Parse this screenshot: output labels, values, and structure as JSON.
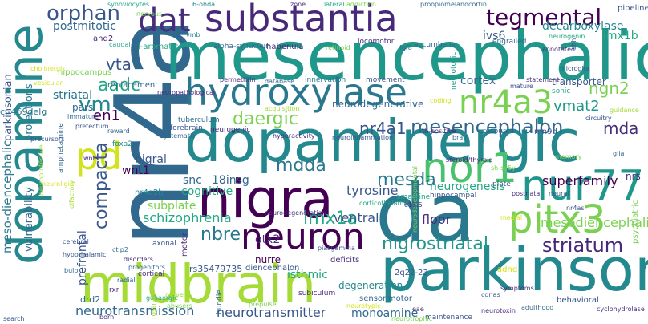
{
  "words": {
    "nr4a": "nr4a",
    "dopamine": "dopamine",
    "mesencephalic": "mesencephalic",
    "substantia": "substantia",
    "dopaminergic": "dopaminergic",
    "nigra": "nigra",
    "da": "da",
    "parkinson": "parkinson",
    "midbrain": "midbrain",
    "hydroxylase": "hydroxylase",
    "dat": "dat",
    "nor1": "nor1",
    "nur77": "nur77",
    "pitx3": "pitx3",
    "pd": "pd",
    "nr4a3": "nr4a3",
    "tegmental": "tegmental",
    "orphan": "orphan",
    "mesencephalon": "mesencephalon",
    "nr4a1": "nr4a1",
    "daergic": "daergic",
    "vm": "vm",
    "aadc": "aadc",
    "vta": "vta",
    "striatum": "striatum",
    "nigrostriatal": "nigrostriatal",
    "lmx1a": "lmx1a",
    "nbre": "nbre",
    "compacta": "compacta",
    "mesda": "mesda",
    "mdda": "mdda",
    "mda": "mda",
    "ngn2": "ngn2",
    "neuron": "neuron",
    "schizophrenia": "schizophrenia",
    "neurotransmission": "neurotransmission",
    "neurotransmitter": "neurotransmitter",
    "monoamine": "monoamine",
    "mesodiencephalic": "mesodiencephalic",
    "meso_diencephalic": "meso-diencephalic",
    "tyrosine": "tyrosine",
    "superfamily": "superfamily",
    "neurogenesis": "neurogenesis",
    "striatal": "striatal",
    "postmitotic": "postmitotic",
    "ivs6": "ivs6",
    "lmx1b": "lmx1b",
    "decarboxylase": "decarboxylase",
    "cortex": "cortex",
    "vmat2": "vmat2",
    "transporter": "transporter",
    "en1": "en1",
    "wnt1": "wnt1",
    "snc": "snc",
    "18insg": "18insg",
    "nigral": "nigral",
    "cognitive": "cognitive",
    "subplate": "subplate",
    "otx2": "otx2",
    "ventral": "ventral",
    "nurre": "nurre",
    "floor": "floor",
    "isthmic": "isthmic",
    "degeneration": "degeneration",
    "prefrontal": "prefrontal",
    "parkinsonian": "parkinsonian",
    "projections": "projections",
    "vulnerability": "vulnerability",
    "neurodegenerative": "neurodegenerative",
    "nr4a2b": "nr4a2b",
    "ahd2": "ahd2",
    "hippocampus": "hippocampus",
    "l_aromatic": "l-aromatic",
    "alpha_synuclein": "alpha-synuclein",
    "habenula": "habenula",
    "locomotor": "locomotor",
    "accumbens": "accumbens",
    "neurotoxic": "neurotoxic",
    "synoviocytes": "synoviocytes",
    "nervous": "nervous",
    "ohda": "6-ohda",
    "zone": "zone",
    "lateral": "lateral",
    "addiction": "addiction",
    "proopiomelanocortin": "proopiomelanocortin",
    "pipeline": "pipeline",
    "engrailed": "engrailed",
    "neurogenin": "neurogenin",
    "retinoid": "retinoid",
    "caudal": "caudal",
    "vmb": "vmb",
    "fgf8": "fgf8",
    "annotated": "annotated",
    "microglia": "microglia",
    "replacement": "replacement",
    "neuropathological": "neuropathological",
    "permethrin": "permethrin",
    "database": "database",
    "innervation": "innervation",
    "movement": "movement",
    "statement": "statement",
    "mature": "mature",
    "sonic": "sonic",
    "pars": "pars",
    "delg": "c.-469delg",
    "tuberculum": "tuberculum",
    "forebrain": "forebrain",
    "neurogenic": "neurogenic",
    "resource": "resource",
    "mn9d": "mn9d",
    "th_positive": "th-positive",
    "brain": "brain",
    "neuroinflammation": "neuroinflammation",
    "amacrine": "amacrine",
    "memory": "memory",
    "glia": "glia",
    "nrs": "nrs",
    "neurodegeneration": "neurodegeneration",
    "corticothalamic": "corticothalamic",
    "e115": "e11.5",
    "plate": "plate",
    "postnatal": "postnatal",
    "neural": "neural",
    "hippocampal": "hippocampal",
    "nr4as": "nr4as",
    "psychiatric": "psychiatric",
    "adhd": "adhd",
    "piasgamma": "piasgamma",
    "deficits": "deficits",
    "q22": "2q22-23",
    "sensorimotor": "sensorimotor",
    "subiculum": "subiculum",
    "rs": "rs35479735",
    "drd2": "drd2",
    "disorders": "disorders",
    "cortical": "cortical",
    "progenitors": "progenitors",
    "axonal": "axonal",
    "motor": "motor",
    "ctip2": "ctip2",
    "hypothalamic": "hypothalamic",
    "cdnas": "cdnas",
    "symptoms": "symptoms",
    "adulthood": "adulthood",
    "behavioral": "behavioral",
    "cyclohydrolase": "cyclohydrolase",
    "neurotoxin": "neurotoxin",
    "maintenance": "maintenance",
    "neurotrophic": "neurotrophic",
    "abusers": "abusers",
    "prepulse": "prepulse",
    "gabaergic": "gabaergic",
    "radial": "radial",
    "rxr": "rxr",
    "bulb": "bulb",
    "cerebral": "cerebral",
    "diencephalon": "diencephalon",
    "amphetamine": "amphetamine",
    "wnts": "wnts",
    "foxa2": "foxa2",
    "pretectum": "pretectum",
    "reward": "reward",
    "systematic": "systematic",
    "hyperactivity": "hyperactivity",
    "immature": "immature",
    "precursors": "precursors",
    "search": "search",
    "rostral": "rostral",
    "nerve": "nerve",
    "born": "born",
    "eae": "eae",
    "sh_sy5y": "sh-sy5y",
    "circuitry": "circuitry",
    "guidance": "guidance",
    "neurodevelopmental": "neurodevelopmental",
    "steroid_thyroid": "steroid/thyroid",
    "acquisition": "acquisition",
    "cholinergic": "cholinergic",
    "vesicular": "vesicular",
    "neuroprotective": "neuroprotective",
    "olfactory": "olfactory",
    "neuroligin": "neuroligin",
    "neurotypic": "neurotypic",
    "shh": "shh",
    "coding": "coding",
    "bundle": "bundle",
    "medial": "medial"
  },
  "colors": {
    "yellow_green": "#a5db36",
    "light_green": "#7ad151",
    "green": "#4ac16d",
    "sea_green": "#22a884",
    "teal": "#1f988b",
    "teal_blue": "#23898e",
    "steel_teal": "#2a788e",
    "blue_teal": "#31688e",
    "slate_blue": "#39568c",
    "indigo": "#414487",
    "dark_indigo": "#472d7b",
    "purple": "#482878",
    "deep_purple": "#440154",
    "yellow": "#fde725",
    "lime": "#d2e21b",
    "pale_lime": "#b5de2b"
  }
}
